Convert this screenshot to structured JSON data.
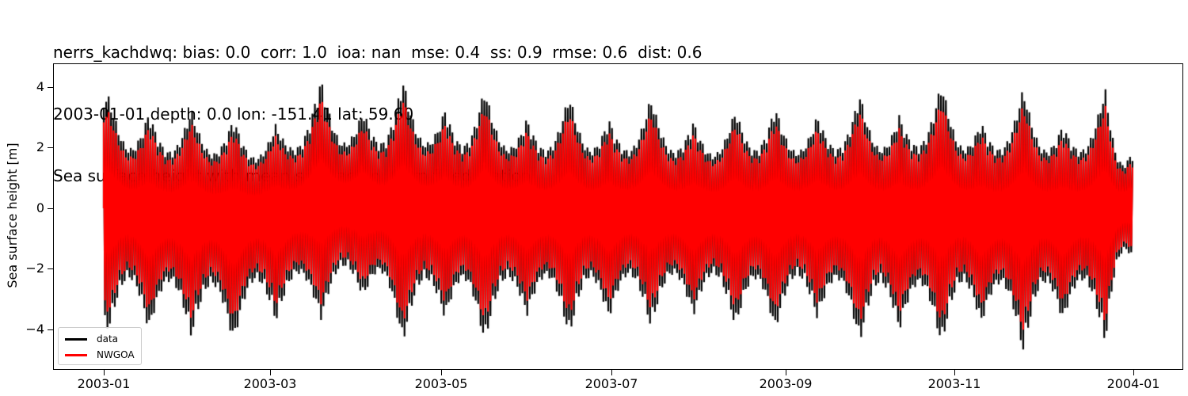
{
  "title": {
    "line1": "nerrs_kachdwq: bias: 0.0  corr: 1.0  ioa: nan  mse: 0.4  ss: 0.9  rmse: 0.6  dist: 0.6",
    "line2": "2003-01-01 depth: 0.0 lon: -151.41 lat: 59.60",
    "line3": "Sea surface height with mean subtracted, from fixed station"
  },
  "legend": {
    "items": [
      {
        "label": "data",
        "color": "#000000"
      },
      {
        "label": "NWGOA",
        "color": "#ff0000"
      }
    ]
  },
  "chart_data": {
    "type": "line",
    "title": "nerrs_kachdwq: bias: 0.0  corr: 1.0  ioa: nan  mse: 0.4  ss: 0.9  rmse: 0.6  dist: 0.6 / 2003-01-01 depth: 0.0 lon: -151.41 lat: 59.60 / Sea surface height with mean subtracted, from fixed station",
    "xlabel": "",
    "ylabel": "Sea surface height [m]",
    "x_range": [
      "2003-01-01",
      "2004-01-01"
    ],
    "ylim": [
      -5.2,
      4.7
    ],
    "yticks": [
      4,
      2,
      0,
      -2,
      -4
    ],
    "ytick_labels": [
      "4",
      "2",
      "0",
      "−2",
      "−4"
    ],
    "xticks": [
      "2003-01",
      "2003-03",
      "2003-05",
      "2003-07",
      "2003-09",
      "2003-11",
      "2004-01"
    ],
    "grid": false,
    "legend_position": "lower left",
    "series": [
      {
        "name": "data",
        "color": "#000000",
        "description": "Observed tidal sea surface height, semidiurnal oscillation with spring-neap envelope",
        "envelope_max_approx": [
          {
            "date": "2003-01-03",
            "max": 3.7,
            "min": -4.0
          },
          {
            "date": "2003-01-17",
            "max": 3.2,
            "min": -4.1
          },
          {
            "date": "2003-02-01",
            "max": 3.3,
            "min": -4.3
          },
          {
            "date": "2003-02-16",
            "max": 3.0,
            "min": -4.5
          },
          {
            "date": "2003-03-03",
            "max": 2.8,
            "min": -3.8
          },
          {
            "date": "2003-03-19",
            "max": 4.3,
            "min": -3.7
          },
          {
            "date": "2003-04-03",
            "max": 3.3,
            "min": -3.0
          },
          {
            "date": "2003-04-17",
            "max": 4.3,
            "min": -4.5
          },
          {
            "date": "2003-05-02",
            "max": 3.3,
            "min": -3.7
          },
          {
            "date": "2003-05-16",
            "max": 4.0,
            "min": -4.5
          },
          {
            "date": "2003-05-31",
            "max": 3.0,
            "min": -3.6
          },
          {
            "date": "2003-06-15",
            "max": 3.8,
            "min": -4.3
          },
          {
            "date": "2003-06-29",
            "max": 3.0,
            "min": -3.7
          },
          {
            "date": "2003-07-14",
            "max": 3.7,
            "min": -4.0
          },
          {
            "date": "2003-07-29",
            "max": 2.9,
            "min": -3.6
          },
          {
            "date": "2003-08-13",
            "max": 3.3,
            "min": -4.0
          },
          {
            "date": "2003-08-27",
            "max": 3.4,
            "min": -4.1
          },
          {
            "date": "2003-09-11",
            "max": 3.1,
            "min": -3.7
          },
          {
            "date": "2003-09-26",
            "max": 3.8,
            "min": -4.5
          },
          {
            "date": "2003-10-10",
            "max": 3.1,
            "min": -4.1
          },
          {
            "date": "2003-10-25",
            "max": 4.2,
            "min": -4.6
          },
          {
            "date": "2003-11-08",
            "max": 2.9,
            "min": -3.9
          },
          {
            "date": "2003-11-23",
            "max": 4.0,
            "min": -4.8
          },
          {
            "date": "2003-12-07",
            "max": 2.8,
            "min": -3.8
          },
          {
            "date": "2003-12-22",
            "max": 4.0,
            "min": -4.5
          },
          {
            "date": "2003-12-31",
            "max": 1.8,
            "min": -1.6
          }
        ]
      },
      {
        "name": "NWGOA",
        "color": "#ff0000",
        "description": "Model sea surface height, slightly smaller amplitude than data",
        "amplitude_ratio_to_data": 0.86
      }
    ]
  }
}
